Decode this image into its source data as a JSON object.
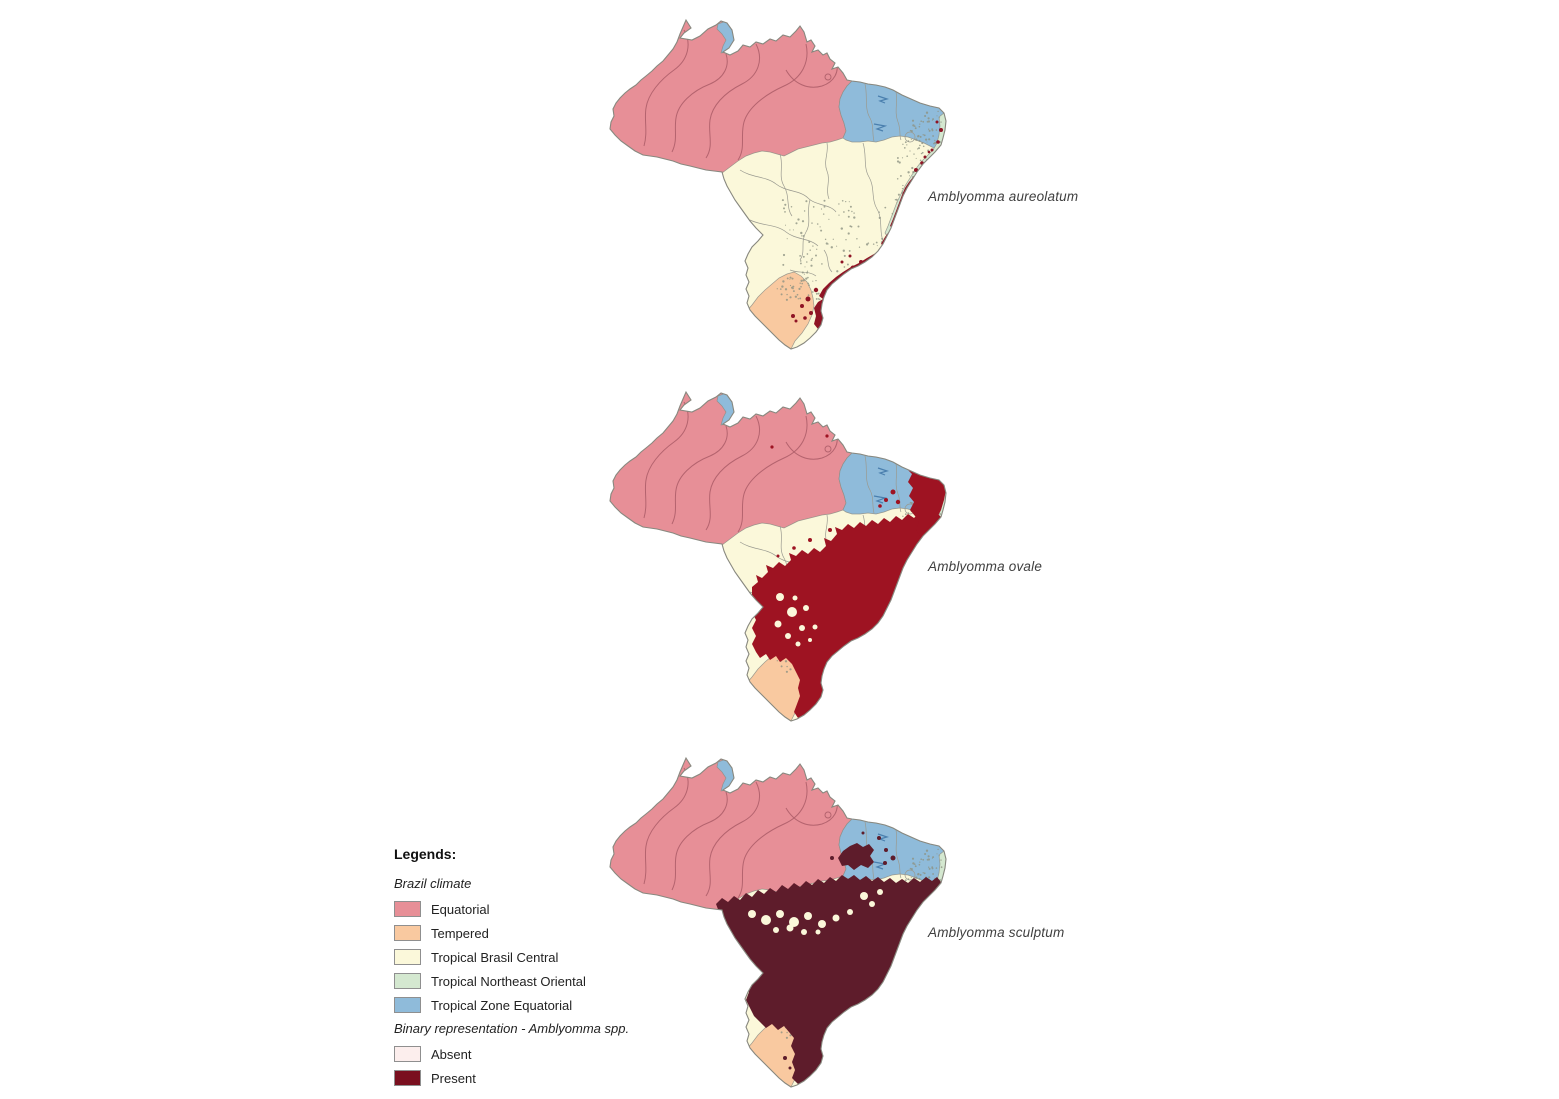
{
  "figure": {
    "background": "#ffffff"
  },
  "maps": [
    {
      "id": "aureolatum",
      "label": "Amblyomma aureolatum",
      "present_fill": "#8f1425"
    },
    {
      "id": "ovale",
      "label": "Amblyomma ovale",
      "present_fill": "#9e1322"
    },
    {
      "id": "sculptum",
      "label": "Amblyomma sculptum",
      "present_fill": "#5e1c2b"
    }
  ],
  "legend": {
    "title": "Legends:",
    "sections": [
      {
        "heading": "Brazil climate",
        "items": [
          {
            "key": "equatorial",
            "label": "Equatorial",
            "color": "#e78f97"
          },
          {
            "key": "tempered",
            "label": "Tempered",
            "color": "#f9c9a0"
          },
          {
            "key": "tropical_brasil_central",
            "label": "Tropical Brasil Central",
            "color": "#fbf8da"
          },
          {
            "key": "tropical_northeast_oriental",
            "label": "Tropical Northeast Oriental",
            "color": "#d4e8d0"
          },
          {
            "key": "tropical_zone_equatorial",
            "label": "Tropical Zone Equatorial",
            "color": "#8fbbda"
          }
        ]
      },
      {
        "heading": "Binary representation - Amblyomma spp.",
        "items": [
          {
            "key": "absent",
            "label": "Absent",
            "color": "#fceeed"
          },
          {
            "key": "present",
            "label": "Present",
            "color": "#7a0f1f"
          }
        ]
      }
    ]
  },
  "map_colors": {
    "outline": "#88887f",
    "zone_border": "#8d8d85",
    "contour": "#b4636e",
    "state_line": "#9a9a90",
    "speckle": "#8e9383",
    "river": "#4a7fae",
    "equatorial": "#e78f97",
    "tempered": "#f9c9a0",
    "tropical_brasil_central": "#fbf8da",
    "tropical_northeast_oriental": "#d4e8d0",
    "tropical_zone_equatorial": "#8fbbda"
  }
}
